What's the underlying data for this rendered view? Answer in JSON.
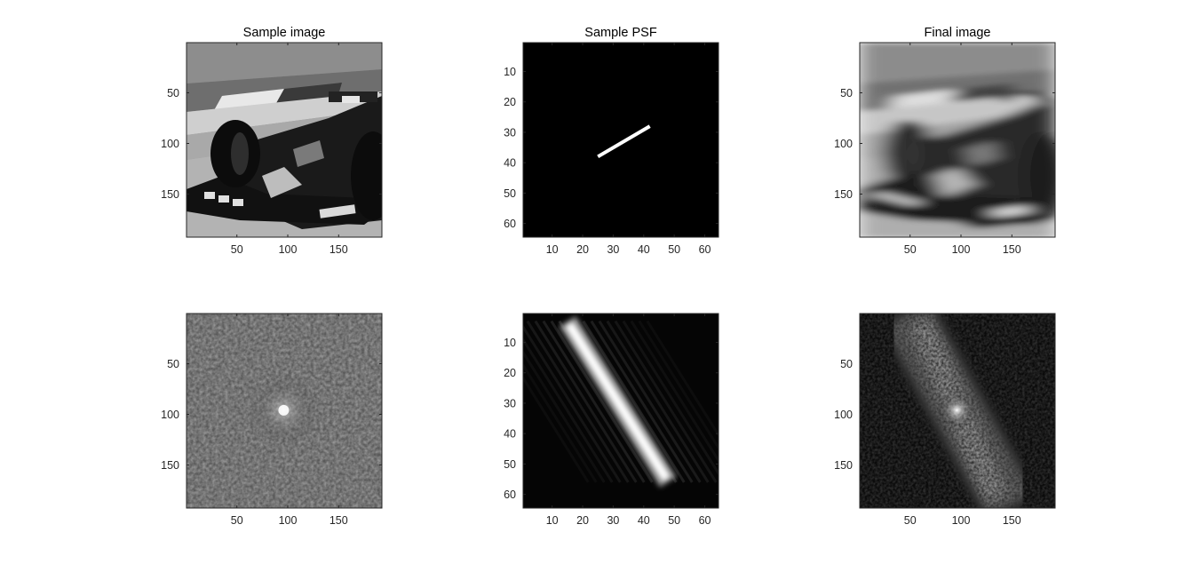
{
  "figure": {
    "background": "#ffffff"
  },
  "chart_data": [
    {
      "type": "heatmap",
      "title": "Sample image",
      "content": "grayscale photograph of a Formula 1 car front wing and tyre",
      "colormap": "gray",
      "xlim": [
        0.5,
        192.5
      ],
      "ylim": [
        0.5,
        192.5
      ],
      "xticks": [
        50,
        100,
        150
      ],
      "yticks": [
        50,
        100,
        150
      ]
    },
    {
      "type": "heatmap",
      "title": "Sample PSF",
      "content": "black background with a short bright diagonal line from about (25,38) to (42,28)",
      "colormap": "gray",
      "psf_line": {
        "x0": 25,
        "y0": 38,
        "x1": 42,
        "y1": 28
      },
      "xlim": [
        0.5,
        64.5
      ],
      "ylim": [
        0.5,
        64.5
      ],
      "xticks": [
        10,
        20,
        30,
        40,
        50,
        60
      ],
      "yticks": [
        10,
        20,
        30,
        40,
        50,
        60
      ]
    },
    {
      "type": "heatmap",
      "title": "Final image",
      "content": "motion-blurred version of the sample image",
      "colormap": "gray",
      "xlim": [
        0.5,
        192.5
      ],
      "ylim": [
        0.5,
        192.5
      ],
      "xticks": [
        50,
        100,
        150
      ],
      "yticks": [
        50,
        100,
        150
      ]
    },
    {
      "type": "heatmap",
      "title": "",
      "content": "log magnitude spectrum of the sample image, speckled noise with a faint bright centre at (96,96)",
      "colormap": "gray",
      "xlim": [
        0.5,
        192.5
      ],
      "ylim": [
        0.5,
        192.5
      ],
      "xticks": [
        50,
        100,
        150
      ],
      "yticks": [
        50,
        100,
        150
      ]
    },
    {
      "type": "heatmap",
      "title": "",
      "content": "magnitude spectrum of the PSF, bright diagonal band from about (15,3) to (48,56) with faint parallel stripes",
      "colormap": "gray",
      "band": {
        "x0": 15,
        "y0": 3,
        "x1": 48,
        "y1": 56
      },
      "xlim": [
        0.5,
        64.5
      ],
      "ylim": [
        0.5,
        64.5
      ],
      "xticks": [
        10,
        20,
        30,
        40,
        50,
        60
      ],
      "yticks": [
        10,
        20,
        30,
        40,
        50,
        60
      ]
    },
    {
      "type": "heatmap",
      "title": "",
      "content": "log magnitude spectrum of the final image, speckled diagonal band with bright centre at (96,96)",
      "colormap": "gray",
      "xlim": [
        0.5,
        192.5
      ],
      "ylim": [
        0.5,
        192.5
      ],
      "xticks": [
        50,
        100,
        150
      ],
      "yticks": [
        50,
        100,
        150
      ]
    }
  ]
}
